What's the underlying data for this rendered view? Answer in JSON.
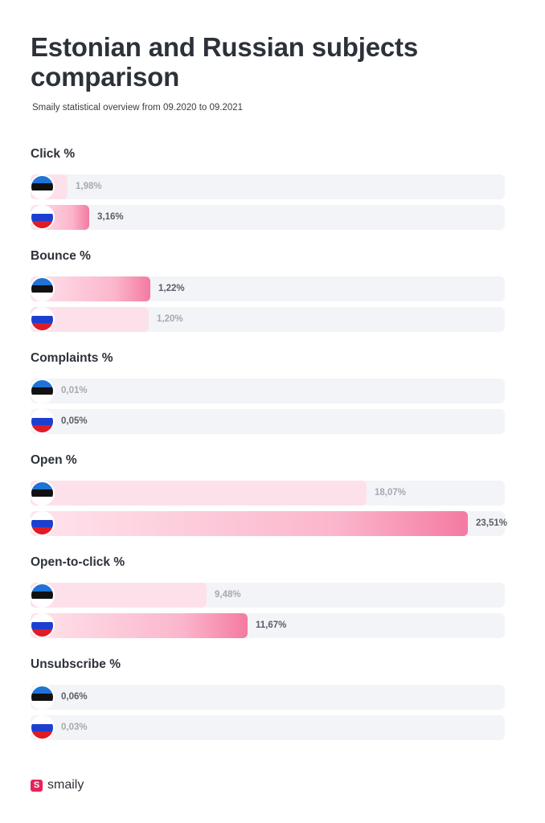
{
  "title": "Estonian and Russian subjects comparison",
  "subtitle": "Smaily statistical overview from 09.2020 to 09.2021",
  "logo": {
    "text": "smaily",
    "mark": "S",
    "color": "#e5245a"
  },
  "colors": {
    "estonia_flag": [
      "#1f73d6",
      "#111111",
      "#ffffff"
    ],
    "russia_flag": [
      "#ffffff",
      "#1c3fd0",
      "#e01b24"
    ],
    "bar_low": "#fde1ea",
    "bar_high_end": "#f47aa1",
    "track": "#f3f4f7"
  },
  "chart_data": {
    "type": "bar",
    "orientation": "horizontal",
    "series": [
      {
        "flag_icon": "estonia-flag-icon"
      },
      {
        "flag_icon": "russia-flag-icon"
      }
    ],
    "axis_max": 25.5,
    "metrics": [
      {
        "label": "Click %",
        "values": [
          1.98,
          3.16
        ],
        "labels": [
          "1,98%",
          "3,16%"
        ]
      },
      {
        "label": "Bounce %",
        "values": [
          1.22,
          1.2
        ],
        "labels": [
          "1,22%",
          "1,20%"
        ]
      },
      {
        "label": "Complaints %",
        "values": [
          0.01,
          0.05
        ],
        "labels": [
          "0,01%",
          "0,05%"
        ]
      },
      {
        "label": "Open %",
        "values": [
          18.07,
          23.51
        ],
        "labels": [
          "18,07%",
          "23,51%"
        ]
      },
      {
        "label": "Open-to-click %",
        "values": [
          9.48,
          11.67
        ],
        "labels": [
          "9,48%",
          "11,67%"
        ]
      },
      {
        "label": "Unsubscribe %",
        "values": [
          0.06,
          0.03
        ],
        "labels": [
          "0,06%",
          "0,03%"
        ]
      }
    ]
  }
}
